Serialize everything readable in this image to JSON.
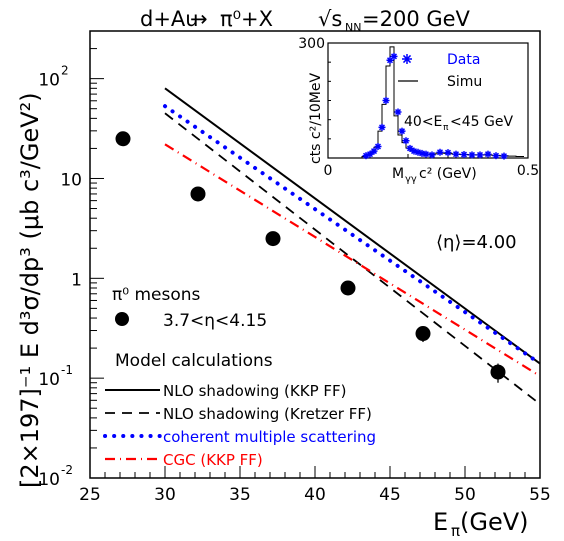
{
  "chart_data": [
    {
      "type": "line",
      "title": "d+Au → π⁰+X   √s_NN=200 GeV",
      "title_parts": {
        "reaction_lhs": "d+Au",
        "arrow": "→",
        "reaction_rhs": "π⁰+X",
        "sqrt_s": "√s",
        "sqrt_s_sub": "NN",
        "energy": "=200 GeV"
      },
      "xlabel": "E_π (GeV)",
      "xlabel_parts": {
        "main": "E",
        "sub": "π",
        "unit": " (GeV)"
      },
      "ylabel": "[2×197]⁻¹ E d³σ/dp³ (μb c³/GeV²)",
      "xlim": [
        25,
        55
      ],
      "ylim": [
        0.01,
        300
      ],
      "y_scale": "log",
      "x_ticks": [
        "25",
        "30",
        "35",
        "40",
        "45",
        "50",
        "55"
      ],
      "y_ticks": [
        {
          "value": 0.01,
          "base": "10",
          "exp": "-2"
        },
        {
          "value": 0.1,
          "base": "10",
          "exp": "-1"
        },
        {
          "value": 1,
          "label": "1"
        },
        {
          "value": 10,
          "label": "10"
        },
        {
          "value": 100,
          "base": "10",
          "exp": "2"
        }
      ],
      "eta_annotation": "⟨η⟩=4.00",
      "data_series": {
        "group_label": "π⁰ mesons",
        "name": "3.7<η<4.15",
        "x": [
          27.2,
          32.2,
          37.2,
          42.2,
          47.2,
          52.2
        ],
        "y": [
          25,
          7.0,
          2.5,
          0.8,
          0.28,
          0.115
        ],
        "y_err": [
          0,
          0,
          0,
          0,
          0.05,
          0.025
        ]
      },
      "model_header": "Model calculations",
      "series": [
        {
          "name": "NLO shadowing (KKP FF)",
          "color": "#000000",
          "dash": "solid",
          "x": [
            30,
            55
          ],
          "y": [
            80,
            0.14
          ]
        },
        {
          "name": "NLO shadowing (Kretzer FF)",
          "color": "#000000",
          "dash": "dashed",
          "x": [
            30,
            55
          ],
          "y": [
            45,
            0.055
          ]
        },
        {
          "name": "coherent multiple scattering",
          "color": "#0000ff",
          "dash": "dotted",
          "x": [
            30,
            55
          ],
          "y": [
            53,
            0.14
          ]
        },
        {
          "name": "CGC (KKP FF)",
          "color": "#ff0000",
          "dash": "dashdot",
          "x": [
            30,
            55
          ],
          "y": [
            22,
            0.105
          ]
        }
      ],
      "legend_position": "bottom-left"
    },
    {
      "type": "line",
      "title": "",
      "xlabel": "M_γγ c² (GeV)",
      "xlabel_parts": {
        "main": "M",
        "sub": "γγ",
        "unit": " c² (GeV)"
      },
      "ylabel": "cts c²/10MeV",
      "xlim": [
        0,
        0.5
      ],
      "ylim": [
        0,
        300
      ],
      "x_ticks": [
        "0",
        "0.5"
      ],
      "y_ticks": [
        "300"
      ],
      "annotation": "40<E_π<45 GeV",
      "annotation_parts": {
        "pre": "40<E",
        "sub": "π",
        "post": "<45 GeV"
      },
      "series": [
        {
          "name": "Data",
          "color": "#0000ff",
          "marker": "star",
          "x": [
            0.095,
            0.105,
            0.115,
            0.125,
            0.135,
            0.145,
            0.155,
            0.165,
            0.175,
            0.185,
            0.195,
            0.205,
            0.215,
            0.225,
            0.235,
            0.245,
            0.26,
            0.28,
            0.3,
            0.32,
            0.34,
            0.36,
            0.38,
            0.4,
            0.42,
            0.44
          ],
          "y": [
            6,
            10,
            18,
            30,
            80,
            150,
            255,
            265,
            120,
            70,
            45,
            25,
            18,
            15,
            12,
            10,
            8,
            15,
            14,
            10,
            9,
            8,
            8,
            10,
            6,
            5
          ]
        },
        {
          "name": "Simu",
          "color": "#000000",
          "marker": "histogram",
          "x": [
            0.09,
            0.1,
            0.11,
            0.12,
            0.13,
            0.14,
            0.15,
            0.16,
            0.17,
            0.18,
            0.19,
            0.2,
            0.21,
            0.22,
            0.23,
            0.24,
            0.26,
            0.28,
            0.3,
            0.32,
            0.34,
            0.36,
            0.38,
            0.4,
            0.42,
            0.44,
            0.46,
            0.48
          ],
          "y": [
            4,
            8,
            14,
            28,
            70,
            140,
            240,
            290,
            110,
            60,
            40,
            26,
            20,
            16,
            13,
            11,
            10,
            13,
            12,
            10,
            9,
            8,
            8,
            8,
            7,
            6,
            5,
            4
          ]
        }
      ],
      "legend_position": "top-right"
    }
  ]
}
